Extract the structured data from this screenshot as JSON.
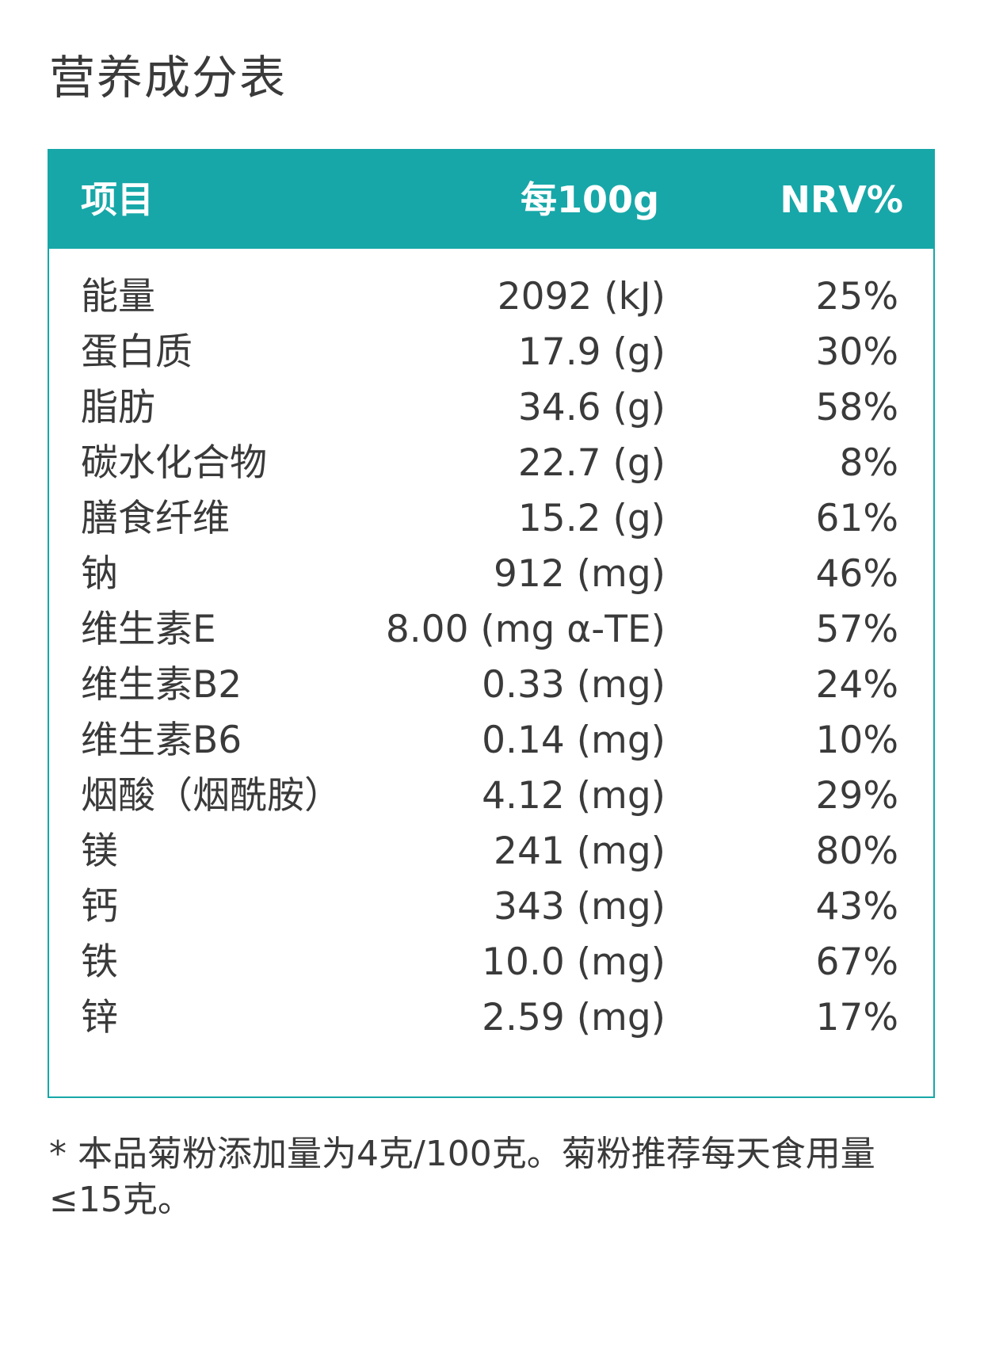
{
  "title": "营养成分表",
  "table": {
    "headers": {
      "item": "项目",
      "per100g": "每100g",
      "nrv": "NRV%"
    },
    "rows": [
      {
        "item": "能量",
        "per100g": "2092 (kJ)",
        "nrv": "25%"
      },
      {
        "item": "蛋白质",
        "per100g": "17.9 (g)",
        "nrv": "30%"
      },
      {
        "item": "脂肪",
        "per100g": "34.6 (g)",
        "nrv": "58%"
      },
      {
        "item": "碳水化合物",
        "per100g": "22.7 (g)",
        "nrv": "8%"
      },
      {
        "item": "膳食纤维",
        "per100g": "15.2 (g)",
        "nrv": "61%"
      },
      {
        "item": "钠",
        "per100g": "912 (mg)",
        "nrv": "46%"
      },
      {
        "item": "维生素E",
        "per100g": "8.00 (mg α-TE)",
        "nrv": "57%"
      },
      {
        "item": "维生素B2",
        "per100g": "0.33 (mg)",
        "nrv": "24%"
      },
      {
        "item": "维生素B6",
        "per100g": "0.14 (mg)",
        "nrv": "10%"
      },
      {
        "item": "烟酸（烟酰胺）",
        "per100g": "4.12 (mg)",
        "nrv": "29%"
      },
      {
        "item": "镁",
        "per100g": "241 (mg)",
        "nrv": "80%"
      },
      {
        "item": "钙",
        "per100g": "343 (mg)",
        "nrv": "43%"
      },
      {
        "item": "铁",
        "per100g": "10.0 (mg)",
        "nrv": "67%"
      },
      {
        "item": "锌",
        "per100g": "2.59 (mg)",
        "nrv": "17%"
      }
    ]
  },
  "footnote": "* 本品菊粉添加量为4克/100克。菊粉推荐每天食用量≤15克。",
  "colors": {
    "accent": "#17a7a8",
    "text": "#3a3a3a"
  }
}
